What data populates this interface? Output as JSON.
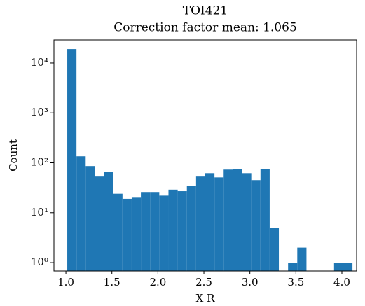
{
  "chart_data": {
    "type": "histogram",
    "title": "TOI421",
    "subtitle": "Correction factor mean: 1.065",
    "xlabel": "X R",
    "ylabel": "Count",
    "color": "#1f77b4",
    "log_y": true,
    "bins": [
      1.015,
      1.115,
      1.215,
      1.315,
      1.415,
      1.515,
      1.615,
      1.715,
      1.815,
      1.915,
      2.015,
      2.115,
      2.215,
      2.315,
      2.415,
      2.515,
      2.615,
      2.715,
      2.815,
      2.915,
      3.015,
      3.115,
      3.215,
      3.315,
      3.415,
      3.515,
      3.615,
      3.715,
      3.815,
      3.915,
      4.015,
      4.115
    ],
    "values": [
      19000,
      135,
      86,
      53,
      66,
      24,
      19,
      20,
      26,
      26,
      22,
      29,
      27,
      34,
      53,
      62,
      51,
      73,
      76,
      62,
      45,
      76,
      5,
      0,
      1,
      2,
      0,
      0,
      0,
      1,
      1
    ],
    "xlim": [
      0.87,
      4.16
    ],
    "ylim": [
      0.68,
      29000
    ],
    "xticks": [
      {
        "value": 1,
        "label": "1.0"
      },
      {
        "value": 1.5,
        "label": "1.5"
      },
      {
        "value": 2,
        "label": "2.0"
      },
      {
        "value": 2.5,
        "label": "2.5"
      },
      {
        "value": 3,
        "label": "3.0"
      },
      {
        "value": 3.5,
        "label": "3.5"
      },
      {
        "value": 4,
        "label": "4.0"
      }
    ],
    "yticks": [
      {
        "value": 1,
        "label": "10⁰"
      },
      {
        "value": 10,
        "label": "10¹"
      },
      {
        "value": 100,
        "label": "10²"
      },
      {
        "value": 1000,
        "label": "10³"
      },
      {
        "value": 10000,
        "label": "10⁴"
      }
    ]
  }
}
